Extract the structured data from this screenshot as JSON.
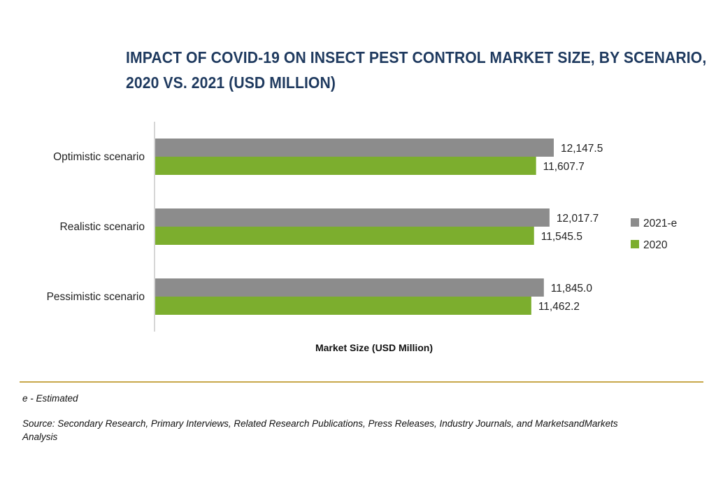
{
  "chart_data": {
    "type": "bar",
    "orientation": "horizontal",
    "title_line1": "IMPACT OF COVID-19 ON INSECT PEST CONTROL MARKET SIZE, BY SCENARIO,",
    "title_line2": "2020 VS. 2021 (USD MILLION)",
    "categories": [
      "Optimistic scenario",
      "Realistic scenario",
      "Pessimistic scenario"
    ],
    "series": [
      {
        "name": "2021-e",
        "color": "#8c8c8c",
        "values": [
          12147.5,
          12017.7,
          11845.0
        ],
        "labels": [
          "12,147.5",
          "12,017.7",
          "11,845.0"
        ]
      },
      {
        "name": "2020",
        "color": "#7cae2e",
        "values": [
          11607.7,
          11545.5,
          11462.2
        ],
        "labels": [
          "11,607.7",
          "11,545.5",
          "11,462.2"
        ]
      }
    ],
    "xlabel": "Market Size (USD Million)",
    "ylabel": "",
    "legend_position": "right",
    "grid": false
  },
  "footnote": "e - Estimated",
  "source": "Source: Secondary Research, Primary Interviews, Related Research Publications, Press Releases, Industry Journals, and MarketsandMarkets Analysis"
}
